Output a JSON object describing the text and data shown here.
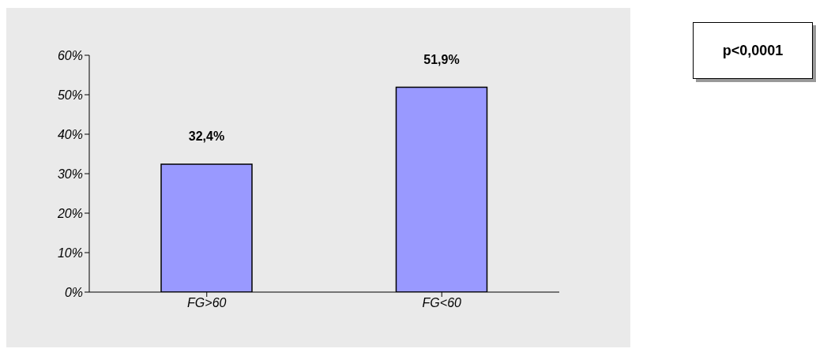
{
  "chart_data": {
    "type": "bar",
    "categories": [
      "FG>60",
      "FG<60"
    ],
    "values": [
      32.4,
      51.9
    ],
    "color": "#9999ff",
    "value_labels": [
      "32,4%",
      "51,9%"
    ],
    "ylim": [
      0,
      60
    ],
    "yticks": [
      {
        "value": 0,
        "label": "0%"
      },
      {
        "value": 10,
        "label": "10%"
      },
      {
        "value": 20,
        "label": "20%"
      },
      {
        "value": 30,
        "label": "30%"
      },
      {
        "value": 40,
        "label": "40%"
      },
      {
        "value": 50,
        "label": "50%"
      },
      {
        "value": 60,
        "label": "60%"
      }
    ],
    "annotations": [
      "p<0,0001"
    ]
  }
}
